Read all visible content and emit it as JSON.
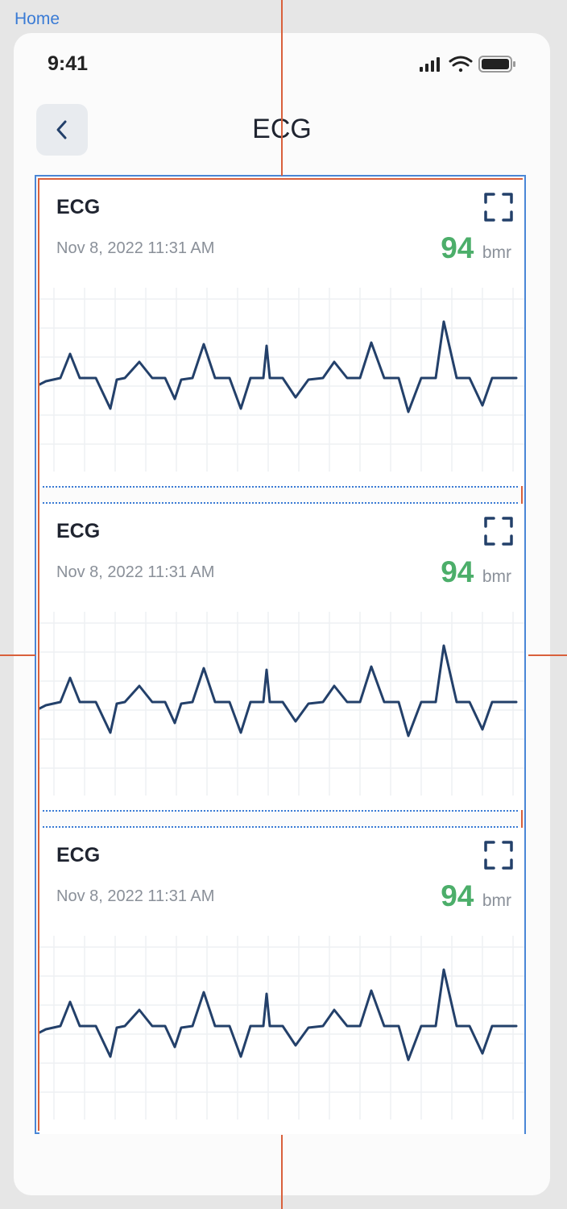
{
  "home_link": "Home",
  "status": {
    "time": "9:41"
  },
  "nav": {
    "title": "ECG"
  },
  "cards": [
    {
      "title": "ECG",
      "date": "Nov 8, 2022 11:31 AM",
      "value": "94",
      "unit": "bmr"
    },
    {
      "title": "ECG",
      "date": "Nov 8, 2022 11:31 AM",
      "value": "94",
      "unit": "bmr"
    },
    {
      "title": "ECG",
      "date": "Nov 8, 2022 11:31 AM",
      "value": "94",
      "unit": "bmr"
    }
  ],
  "colors": {
    "accent": "#4cae6a",
    "trace": "#23406a",
    "selection": "#4a86d6",
    "guide": "#d9603b"
  }
}
